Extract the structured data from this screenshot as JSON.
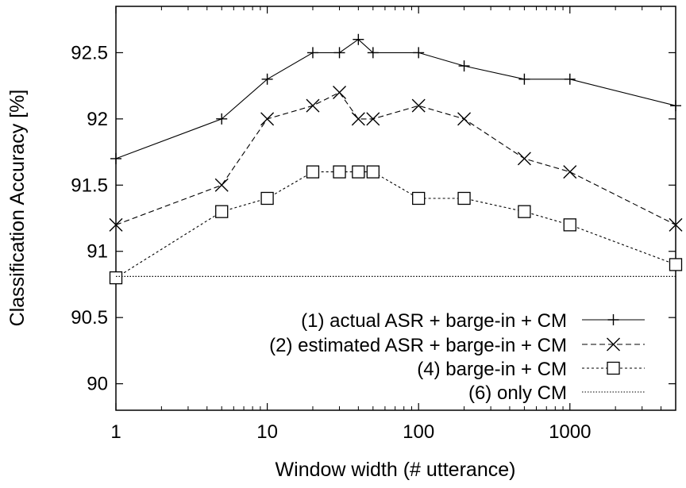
{
  "chart_data": {
    "type": "line",
    "xlabel": "Window width (# utterance)",
    "ylabel": "Classification Accuracy [%]",
    "x_scale": "log",
    "xlim": [
      1,
      5000
    ],
    "ylim": [
      89.8,
      92.85
    ],
    "x_ticks": [
      1,
      10,
      100,
      1000
    ],
    "x_tick_labels": [
      "1",
      "10",
      "100",
      "1000"
    ],
    "y_ticks": [
      90,
      90.5,
      91,
      91.5,
      92,
      92.5
    ],
    "y_tick_labels": [
      "90",
      "90.5",
      "91",
      "91.5",
      "92",
      "92.5"
    ],
    "grid": false,
    "legend_position": "bottom-right",
    "series": [
      {
        "name": "(1) actual ASR + barge-in + CM",
        "style": "solid",
        "marker": "plus",
        "color": "#000000",
        "points": [
          [
            1,
            91.7
          ],
          [
            5,
            92.0
          ],
          [
            10,
            92.3
          ],
          [
            20,
            92.5
          ],
          [
            30,
            92.5
          ],
          [
            40,
            92.6
          ],
          [
            50,
            92.5
          ],
          [
            100,
            92.5
          ],
          [
            200,
            92.4
          ],
          [
            500,
            92.3
          ],
          [
            1000,
            92.3
          ],
          [
            5000,
            92.1
          ]
        ]
      },
      {
        "name": "(2) estimated ASR + barge-in + CM",
        "style": "dashed",
        "marker": "cross",
        "color": "#000000",
        "points": [
          [
            1,
            91.2
          ],
          [
            5,
            91.5
          ],
          [
            10,
            92.0
          ],
          [
            20,
            92.1
          ],
          [
            30,
            92.2
          ],
          [
            40,
            92.0
          ],
          [
            50,
            92.0
          ],
          [
            100,
            92.1
          ],
          [
            200,
            92.0
          ],
          [
            500,
            91.7
          ],
          [
            1000,
            91.6
          ],
          [
            5000,
            91.2
          ]
        ]
      },
      {
        "name": "(4) barge-in + CM",
        "style": "dotted",
        "marker": "square",
        "color": "#000000",
        "points": [
          [
            1,
            90.8
          ],
          [
            5,
            91.3
          ],
          [
            10,
            91.4
          ],
          [
            20,
            91.6
          ],
          [
            30,
            91.6
          ],
          [
            40,
            91.6
          ],
          [
            50,
            91.6
          ],
          [
            100,
            91.4
          ],
          [
            200,
            91.4
          ],
          [
            500,
            91.3
          ],
          [
            1000,
            91.2
          ],
          [
            5000,
            90.9
          ]
        ]
      },
      {
        "name": "(6) only CM",
        "style": "fine-dotted",
        "marker": "none",
        "color": "#000000",
        "points": [
          [
            1,
            90.81
          ],
          [
            5000,
            90.81
          ]
        ]
      }
    ]
  }
}
